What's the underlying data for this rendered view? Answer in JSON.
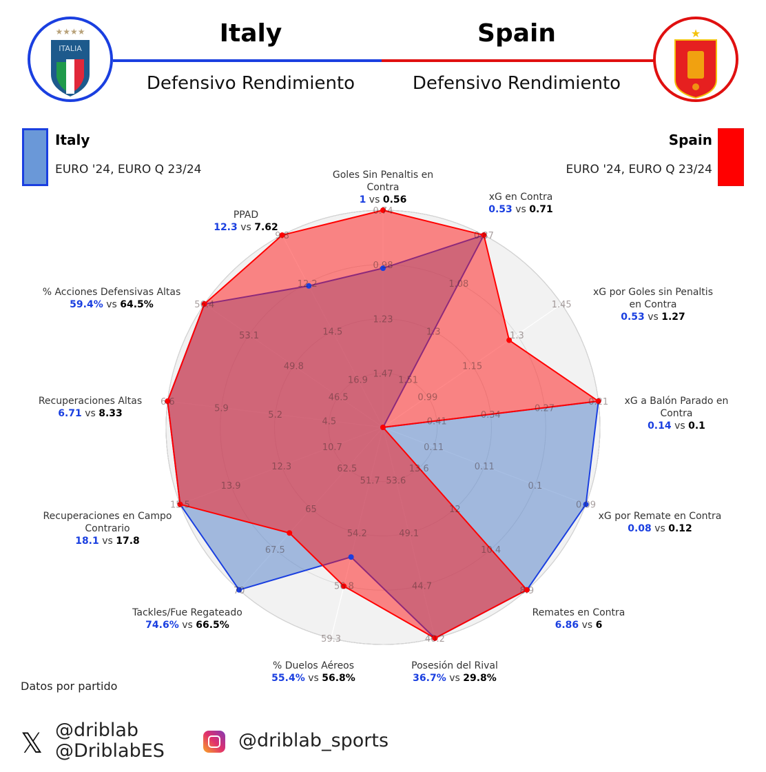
{
  "header": {
    "left_team": "Italy",
    "right_team": "Spain",
    "left_subtitle": "Defensivo Rendimiento",
    "right_subtitle": "Defensivo Rendimiento",
    "left_logo_text": "ITALIA"
  },
  "legend": {
    "italy": {
      "name": "Italy",
      "competition": "EURO '24, EURO Q 23/24",
      "color": "#6a98d8",
      "border": "#1a3fe0"
    },
    "spain": {
      "name": "Spain",
      "competition": "EURO '24, EURO Q 23/24",
      "color": "#ff0000",
      "border": "#e01010"
    }
  },
  "chart_data": {
    "type": "radar",
    "series": [
      {
        "name": "Italy",
        "color": "#1a3fe0",
        "fill": "rgba(80,125,200,0.5)",
        "values": [
          1,
          0.53,
          0.53,
          0.14,
          0.08,
          6.86,
          36.7,
          55.4,
          74.6,
          18.1,
          6.71,
          59.4,
          12.3
        ],
        "display": [
          "1",
          "0.53",
          "0.53",
          "0.14",
          "0.08",
          "6.86",
          "36.7%",
          "55.4%",
          "74.6%",
          "18.1",
          "6.71",
          "59.4%",
          "12.3"
        ]
      },
      {
        "name": "Spain",
        "color": "#ff0000",
        "fill": "rgba(255,20,20,0.5)",
        "values": [
          0.56,
          0.71,
          1.27,
          0.1,
          0.12,
          6,
          29.8,
          56.8,
          66.5,
          17.8,
          8.33,
          64.5,
          7.62
        ],
        "display": [
          "0.56",
          "0.71",
          "1.27",
          "0.1",
          "0.12",
          "6",
          "29.8%",
          "56.8%",
          "66.5%",
          "17.8",
          "8.33",
          "64.5%",
          "7.62"
        ]
      }
    ],
    "vs_label": "vs",
    "axes": [
      {
        "label": "Goles Sin Penaltis en Contra",
        "ticks": [
          "1.47",
          "1.23",
          "0.98",
          "0.74"
        ]
      },
      {
        "label": "xG en Contra",
        "ticks": [
          "1.51",
          "1.3",
          "1.08",
          "0.87"
        ]
      },
      {
        "label": "xG por Goles sin Penaltis en Contra",
        "ticks": [
          "0.99",
          "1.15",
          "1.3",
          "1.45"
        ]
      },
      {
        "label": "xG a Balón Parado en Contra",
        "ticks": [
          "0.41",
          "0.34",
          "0.27",
          "0.21"
        ]
      },
      {
        "label": "xG por Remate en Contra",
        "ticks": [
          "0.11",
          "0.11",
          "0.1",
          "0.09"
        ]
      },
      {
        "label": "Remates en Contra",
        "ticks": [
          "13.6",
          "12",
          "10.4",
          "8.9"
        ]
      },
      {
        "label": "Posesión del Rival",
        "ticks": [
          "53.6",
          "49.1",
          "44.7",
          "40.2"
        ]
      },
      {
        "label": "% Duelos Aéreos",
        "ticks": [
          "51.7",
          "54.2",
          "56.8",
          "59.3"
        ]
      },
      {
        "label": "Tackles/Fue Regateado",
        "ticks": [
          "62.5",
          "65",
          "67.5",
          "70"
        ]
      },
      {
        "label": "Recuperaciones en Campo Contrario",
        "ticks": [
          "10.7",
          "12.3",
          "13.9",
          "15.5"
        ]
      },
      {
        "label": "Recuperaciones Altas",
        "ticks": [
          "4.5",
          "5.2",
          "5.9",
          "6.6"
        ]
      },
      {
        "label": "% Acciones Defensivas Altas",
        "ticks": [
          "46.5",
          "49.8",
          "53.1",
          "56.4"
        ]
      },
      {
        "label": "PPAD",
        "ticks": [
          "16.9",
          "14.5",
          "12.2",
          "9.8"
        ]
      }
    ]
  },
  "footer": {
    "note": "Datos por partido",
    "x_handle_1": "@driblab",
    "x_handle_2": "@DriblabES",
    "instagram_handle": "@driblab_sports"
  }
}
